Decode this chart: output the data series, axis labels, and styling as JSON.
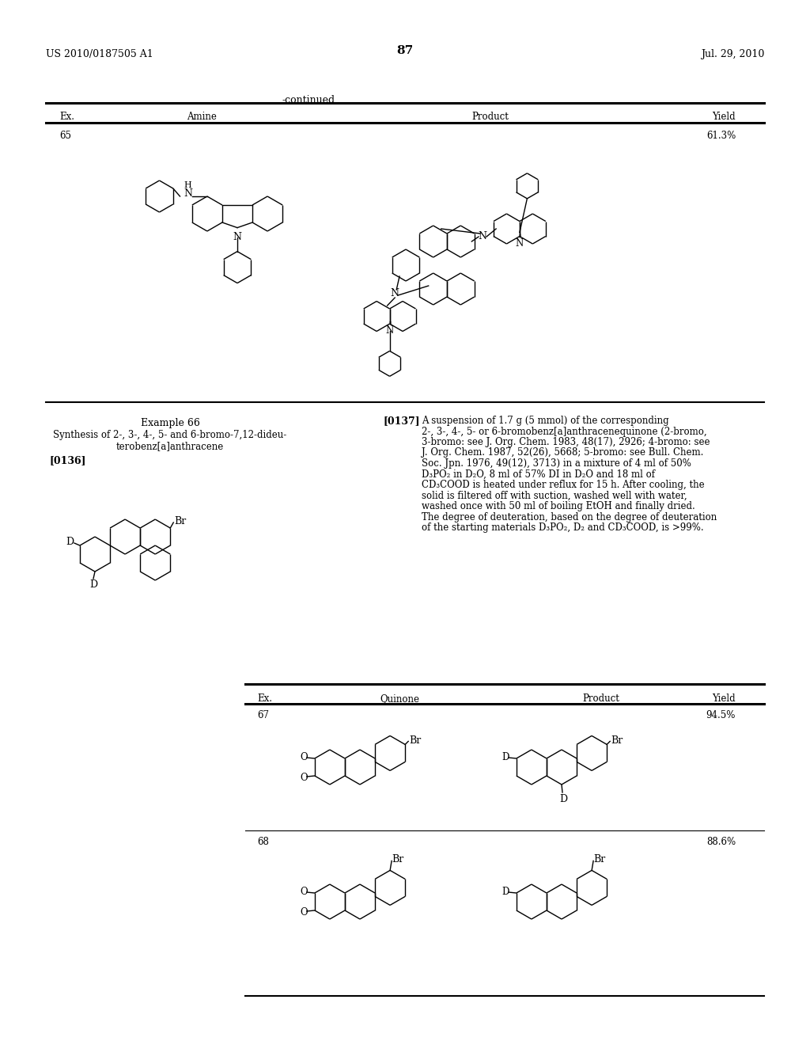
{
  "page_number": "87",
  "patent_number": "US 2010/0187505 A1",
  "patent_date": "Jul. 29, 2010",
  "continued_label": "-continued",
  "t1_headers": [
    "Ex.",
    "Amine",
    "Product",
    "Yield"
  ],
  "t1_ex65": "65",
  "t1_yield65": "61.3%",
  "ex66_title": "Example 66",
  "ex66_sub1": "Synthesis of 2-, 3-, 4-, 5- and 6-bromo-7,12-dideu-",
  "ex66_sub2": "terobenz[a]anthracene",
  "ref136": "[0136]",
  "ref137": "[0137]",
  "para137": [
    "A suspension of 1.7 g (5 mmol) of the corresponding",
    "2-, 3-, 4-, 5- or 6-bromobenz[a]anthracenequinone (2-bromo,",
    "3-bromo: see J. Org. Chem. 1983, 48(17), 2926; 4-bromo: see",
    "J. Org. Chem. 1987, 52(26), 5668; 5-bromo: see Bull. Chem.",
    "Soc. Jpn. 1976, 49(12), 3713) in a mixture of 4 ml of 50%",
    "D₃PO₂ in D₂O, 8 ml of 57% DI in D₂O and 18 ml of",
    "CD₃COOD is heated under reflux for 15 h. After cooling, the",
    "solid is filtered off with suction, washed well with water,",
    "washed once with 50 ml of boiling EtOH and finally dried.",
    "The degree of deuteration, based on the degree of deuteration",
    "of the starting materials D₃PO₂, D₂ and CD₃COOD, is >99%."
  ],
  "t2_headers": [
    "Ex.",
    "Quinone",
    "Product",
    "Yield"
  ],
  "t2_ex67": "67",
  "t2_yield67": "94.5%",
  "t2_ex68": "68",
  "t2_yield68": "88.6%"
}
